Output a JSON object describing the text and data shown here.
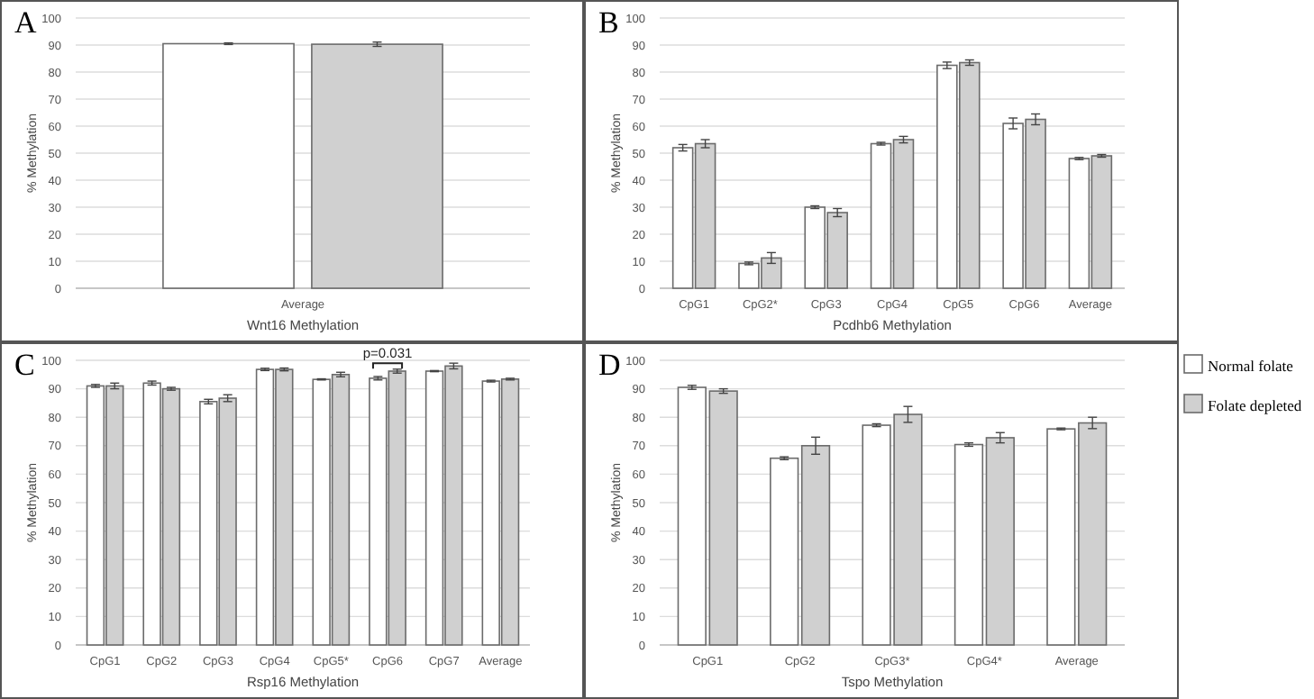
{
  "chart_data": [
    {
      "type": "bar",
      "title": "A",
      "xlabel": "Wnt16 Methylation",
      "ylabel": "% Methylation",
      "categories": [
        "Average"
      ],
      "ylim": [
        0,
        100
      ],
      "yticks": [
        0,
        10,
        20,
        30,
        40,
        50,
        60,
        70,
        80,
        90,
        100
      ],
      "grid": "y",
      "series": [
        {
          "color": "#ffffff",
          "values": [
            90.5
          ],
          "errors": [
            0.3
          ]
        },
        {
          "color": "#d0d0d0",
          "values": [
            90.3
          ],
          "errors": [
            0.8
          ]
        }
      ]
    },
    {
      "type": "bar",
      "title": "B",
      "xlabel": "Pcdhb6 Methylation",
      "ylabel": "% Methylation",
      "categories": [
        "CpG1",
        "CpG2*",
        "CpG3",
        "CpG4",
        "CpG5",
        "CpG6",
        "Average"
      ],
      "ylim": [
        0,
        100
      ],
      "yticks": [
        0,
        10,
        20,
        30,
        40,
        50,
        60,
        70,
        80,
        90,
        100
      ],
      "grid": "y",
      "legend": "right",
      "series": [
        {
          "name": "Normal folate",
          "color": "#ffffff",
          "values": [
            52,
            9.2,
            30,
            53.5,
            82.5,
            61,
            48
          ],
          "errors": [
            1.2,
            0.5,
            0.5,
            0.5,
            1.2,
            2,
            0.4
          ]
        },
        {
          "name": "Folate depleted",
          "color": "#d0d0d0",
          "values": [
            53.5,
            11.2,
            28,
            55,
            83.5,
            62.5,
            49
          ],
          "errors": [
            1.5,
            2,
            1.5,
            1.2,
            1,
            2,
            0.5
          ]
        }
      ]
    },
    {
      "type": "bar",
      "title": "C",
      "xlabel": "Rsp16 Methylation",
      "ylabel": "% Methylation",
      "categories": [
        "CpG1",
        "CpG2",
        "CpG3",
        "CpG4",
        "CpG5*",
        "CpG6",
        "CpG7",
        "Average"
      ],
      "ylim": [
        0,
        100
      ],
      "yticks": [
        0,
        10,
        20,
        30,
        40,
        50,
        60,
        70,
        80,
        90,
        100
      ],
      "grid": "y",
      "annotations": [
        {
          "text": "p=0.031",
          "x": "CpG6",
          "y": 99
        }
      ],
      "series": [
        {
          "color": "#ffffff",
          "values": [
            91,
            92,
            85.5,
            96.8,
            93.3,
            93.7,
            96.2,
            92.7
          ],
          "errors": [
            0.5,
            0.7,
            0.8,
            0.4,
            0.2,
            0.6,
            0.2,
            0.3
          ]
        },
        {
          "color": "#d0d0d0",
          "values": [
            91,
            90,
            86.7,
            96.8,
            95,
            96.2,
            98,
            93.4
          ],
          "errors": [
            1,
            0.5,
            1.2,
            0.5,
            0.8,
            0.7,
            1,
            0.3
          ]
        }
      ]
    },
    {
      "type": "bar",
      "title": "D",
      "xlabel": "Tspo Methylation",
      "ylabel": "% Methylation",
      "categories": [
        "CpG1",
        "CpG2",
        "CpG3*",
        "CpG4*",
        "Average"
      ],
      "ylim": [
        0,
        100
      ],
      "yticks": [
        0,
        10,
        20,
        30,
        40,
        50,
        60,
        70,
        80,
        90,
        100
      ],
      "grid": "y",
      "series": [
        {
          "color": "#ffffff",
          "values": [
            90.5,
            65.6,
            77.2,
            70.4,
            75.9
          ],
          "errors": [
            0.7,
            0.5,
            0.5,
            0.6,
            0.3
          ]
        },
        {
          "color": "#d0d0d0",
          "values": [
            89.2,
            70,
            81,
            72.8,
            78
          ],
          "errors": [
            0.8,
            3,
            2.8,
            1.8,
            2
          ]
        }
      ]
    }
  ]
}
